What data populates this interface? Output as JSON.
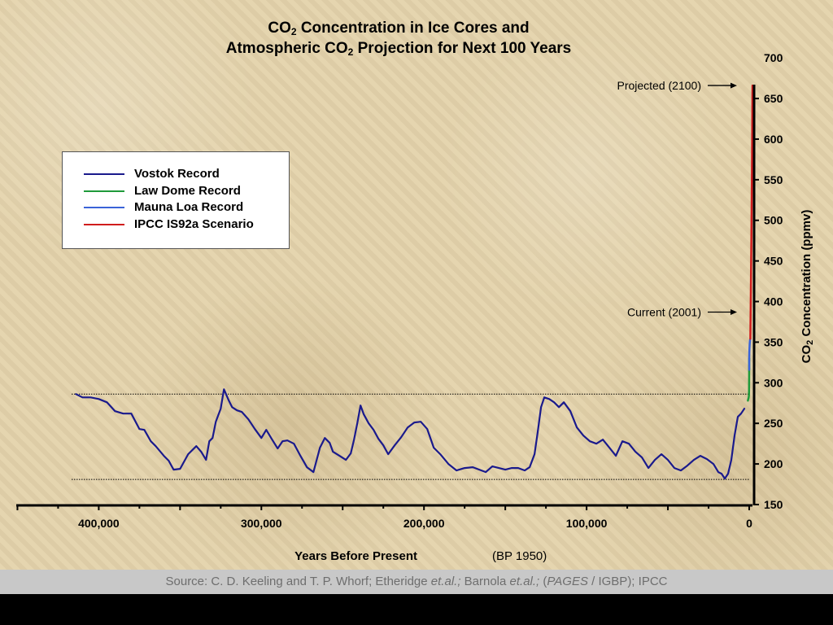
{
  "title": {
    "line1": "Concentration in Ice Cores and",
    "line2_prefix": "Atmospheric CO",
    "line2_suffix": " Projection for Next 100 Years",
    "co2_prefix": "CO",
    "sub2": "2"
  },
  "source": {
    "text1": "Source: C. D. Keeling and T. P. Whorf; Etheridge ",
    "etal1": "et.al.;",
    "text2": " Barnola ",
    "etal2": "et.al.;",
    "text3": "   (",
    "pages": "PAGES",
    "text4": " / IGBP);   IPCC"
  },
  "chart_data": {
    "type": "line",
    "title": "CO2 Concentration in Ice Cores and Atmospheric CO2 Projection for Next 100 Years",
    "xlabel": "Years Before Present",
    "xlabel_note": "(BP 1950)",
    "ylabel": "CO2 Concentration (ppmv)",
    "xlim": [
      450000,
      0
    ],
    "ylim": [
      150,
      700
    ],
    "x_ticks": [
      {
        "value": 400000,
        "label": "400,000"
      },
      {
        "value": 300000,
        "label": "300,000"
      },
      {
        "value": 200000,
        "label": "200,000"
      },
      {
        "value": 100000,
        "label": "100,000"
      },
      {
        "value": 0,
        "label": "0"
      }
    ],
    "y_ticks": [
      {
        "value": 150,
        "label": "150"
      },
      {
        "value": 200,
        "label": "200"
      },
      {
        "value": 250,
        "label": "250"
      },
      {
        "value": 300,
        "label": "300"
      },
      {
        "value": 350,
        "label": "350"
      },
      {
        "value": 400,
        "label": "400"
      },
      {
        "value": 450,
        "label": "450"
      },
      {
        "value": 500,
        "label": "500"
      },
      {
        "value": 550,
        "label": "550"
      },
      {
        "value": 600,
        "label": "600"
      },
      {
        "value": 650,
        "label": "650"
      },
      {
        "value": 700,
        "label": "700"
      }
    ],
    "legend_position": "upper-left",
    "reference_lines": [
      {
        "y": 286,
        "style": "dotted"
      },
      {
        "y": 181,
        "style": "dotted"
      }
    ],
    "annotations": [
      {
        "text": "Projected (2100)",
        "x": 0,
        "y": 666
      },
      {
        "text": "Current (2001)",
        "x": 0,
        "y": 387
      }
    ],
    "series": [
      {
        "name": "Vostok Record",
        "color": "#1a1a8c",
        "x": [
          414000,
          410000,
          405000,
          400000,
          395000,
          390000,
          385000,
          380000,
          375000,
          372000,
          368000,
          365000,
          360000,
          357000,
          354000,
          350000,
          345000,
          340000,
          337000,
          334000,
          332000,
          330000,
          328000,
          325000,
          323000,
          320000,
          318000,
          315000,
          312000,
          308000,
          304000,
          300000,
          297000,
          294000,
          290000,
          287000,
          284000,
          280000,
          276000,
          272000,
          268000,
          264000,
          261000,
          258000,
          256000,
          252000,
          248000,
          245000,
          243000,
          241000,
          239000,
          237000,
          234000,
          231000,
          228000,
          225000,
          222000,
          218000,
          214000,
          210000,
          206000,
          202000,
          198000,
          194000,
          190000,
          185000,
          180000,
          175000,
          170000,
          166000,
          162000,
          158000,
          154000,
          150000,
          146000,
          142000,
          138000,
          135000,
          132000,
          130000,
          128000,
          126000,
          123000,
          120000,
          117000,
          114000,
          110000,
          106000,
          102000,
          98000,
          94000,
          90000,
          86000,
          82000,
          78000,
          74000,
          70000,
          66000,
          62000,
          58000,
          54000,
          50000,
          46000,
          42000,
          38000,
          34000,
          30000,
          26000,
          22000,
          19000,
          17000,
          15000,
          13000,
          11000,
          9000,
          7000,
          5000,
          3000
        ],
        "values": [
          286,
          282,
          282,
          280,
          276,
          265,
          262,
          262,
          243,
          242,
          228,
          222,
          210,
          204,
          193,
          194,
          212,
          222,
          215,
          205,
          228,
          232,
          252,
          268,
          292,
          278,
          270,
          266,
          264,
          255,
          243,
          232,
          242,
          232,
          219,
          228,
          229,
          225,
          210,
          196,
          190,
          220,
          232,
          226,
          215,
          210,
          205,
          213,
          230,
          250,
          272,
          261,
          250,
          242,
          231,
          223,
          212,
          223,
          233,
          245,
          251,
          252,
          243,
          220,
          212,
          200,
          192,
          195,
          196,
          193,
          190,
          197,
          195,
          193,
          195,
          195,
          192,
          196,
          212,
          240,
          270,
          282,
          280,
          276,
          270,
          276,
          265,
          245,
          235,
          228,
          225,
          230,
          220,
          210,
          228,
          225,
          215,
          208,
          195,
          205,
          212,
          205,
          195,
          192,
          198,
          205,
          210,
          206,
          200,
          190,
          188,
          182,
          188,
          205,
          235,
          258,
          262,
          268
        ]
      },
      {
        "name": "Law Dome Record",
        "color": "#1f9a3a",
        "x": [
          800,
          600,
          400,
          250,
          150,
          80,
          40,
          10
        ],
        "values": [
          278,
          280,
          281,
          283,
          285,
          292,
          305,
          330
        ]
      },
      {
        "name": "Mauna Loa Record",
        "color": "#3a63d8",
        "x": [
          7,
          4,
          1,
          -7,
          -20,
          -30,
          -42,
          -51
        ],
        "values": [
          316,
          325,
          331,
          339,
          346,
          350,
          353,
          354
        ]
      },
      {
        "name": "IPCC IS92a Scenario",
        "color": "#d01c1c",
        "x": [
          -51,
          -70,
          -100,
          -130,
          -150
        ],
        "values": [
          354,
          400,
          480,
          580,
          666
        ]
      }
    ]
  }
}
